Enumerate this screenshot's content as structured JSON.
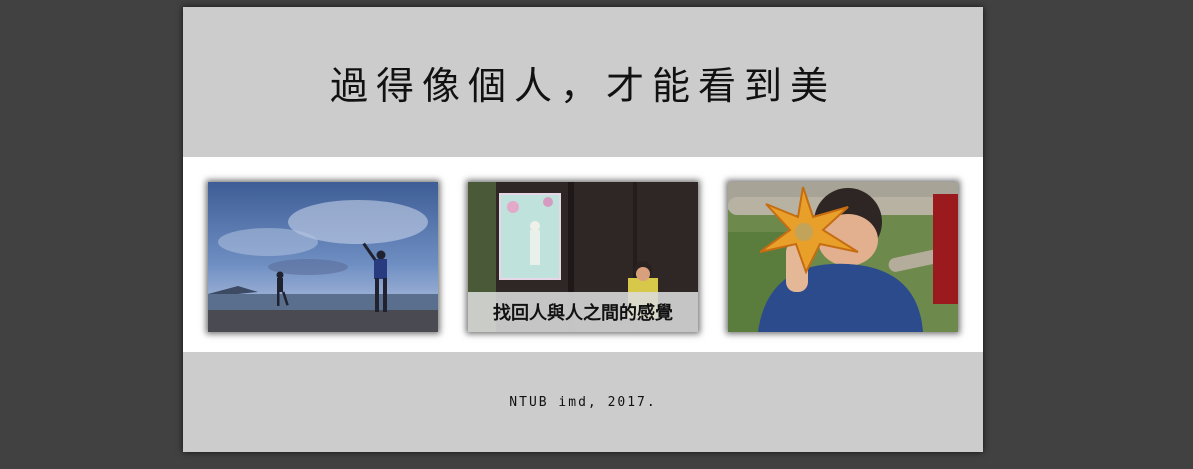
{
  "header": {
    "title": "過得像個人，才能看到美"
  },
  "gallery": {
    "photos": [
      {
        "alt": "children playing at the beach at dusk",
        "caption": ""
      },
      {
        "alt": "child standing by a wooden door with a poster",
        "caption": "找回人與人之間的感覺"
      },
      {
        "alt": "child holding an orange maple leaf",
        "caption": ""
      }
    ]
  },
  "footer": {
    "text": "NTUB imd, 2017."
  }
}
